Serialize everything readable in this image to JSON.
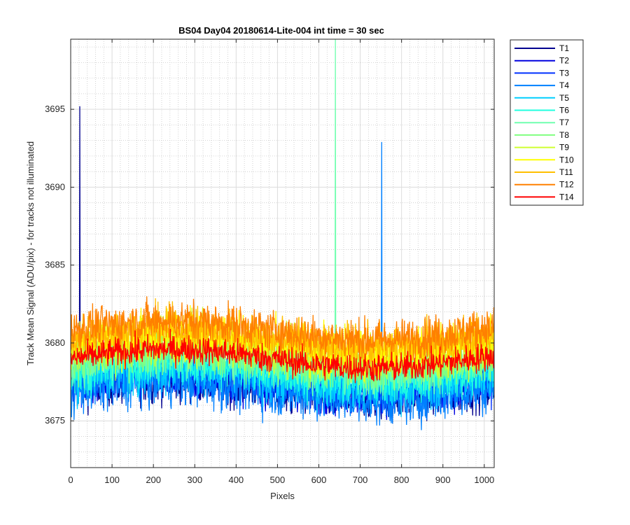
{
  "chart_data": {
    "type": "line",
    "title": "BS04 Day04 20180614-Lite-004 int time = 30 sec",
    "xlabel": "Pixels",
    "ylabel": "Track Mean Signal (ADU/pix) - for tracks not illuminated",
    "xlim": [
      0,
      1024
    ],
    "ylim": [
      3672,
      3699.5
    ],
    "xticks": [
      0,
      100,
      200,
      300,
      400,
      500,
      600,
      700,
      800,
      900,
      1000
    ],
    "yticks": [
      3675,
      3680,
      3685,
      3690,
      3695
    ],
    "grid": true,
    "minor_grid": true,
    "legend_position": "outside-right",
    "series": [
      {
        "name": "T1",
        "color": "#00008f",
        "mean": 3677.0,
        "spread": 1.8,
        "spikes": [
          [
            22,
            3695.2
          ]
        ]
      },
      {
        "name": "T2",
        "color": "#0000df",
        "mean": 3677.3,
        "spread": 1.8,
        "spikes": []
      },
      {
        "name": "T3",
        "color": "#0030ff",
        "mean": 3677.6,
        "spread": 1.8,
        "spikes": []
      },
      {
        "name": "T4",
        "color": "#0080ff",
        "mean": 3677.0,
        "spread": 2.2,
        "spikes": [
          [
            752,
            3692.9
          ]
        ]
      },
      {
        "name": "T5",
        "color": "#00cfff",
        "mean": 3677.8,
        "spread": 2.0,
        "spikes": []
      },
      {
        "name": "T6",
        "color": "#20ffdf",
        "mean": 3678.2,
        "spread": 1.9,
        "spikes": []
      },
      {
        "name": "T7",
        "color": "#70ffaf",
        "mean": 3678.8,
        "spread": 1.9,
        "spikes": [
          [
            640,
            3699.5
          ]
        ]
      },
      {
        "name": "T8",
        "color": "#80ff80",
        "mean": 3678.9,
        "spread": 1.9,
        "spikes": []
      },
      {
        "name": "T9",
        "color": "#cfff30",
        "mean": 3679.5,
        "spread": 2.0,
        "spikes": []
      },
      {
        "name": "T10",
        "color": "#ffff00",
        "mean": 3680.0,
        "spread": 2.0,
        "spikes": []
      },
      {
        "name": "T11",
        "color": "#ffbf00",
        "mean": 3680.3,
        "spread": 1.9,
        "spikes": []
      },
      {
        "name": "T12",
        "color": "#ff8000",
        "mean": 3680.8,
        "spread": 1.7,
        "spikes": []
      },
      {
        "name": "T14",
        "color": "#ff0000",
        "mean": 3679.0,
        "spread": 1.2,
        "spikes": []
      }
    ]
  }
}
